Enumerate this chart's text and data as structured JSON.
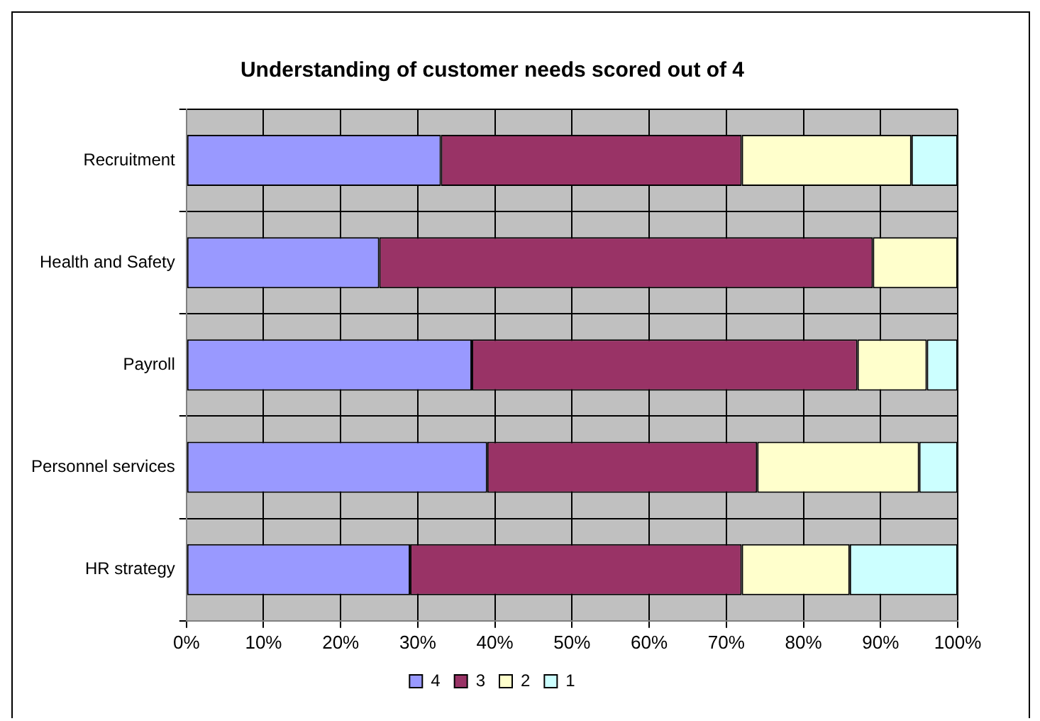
{
  "chart_data": {
    "type": "bar",
    "orientation": "horizontal",
    "stacked": true,
    "title": "Understanding of customer needs scored out of 4",
    "categories": [
      "Recruitment",
      "Health and Safety",
      "Payroll",
      "Personnel services",
      "HR strategy"
    ],
    "series": [
      {
        "name": "4",
        "color": "#9999ff",
        "values": [
          33,
          25,
          37,
          39,
          29
        ]
      },
      {
        "name": "3",
        "color": "#993366",
        "values": [
          39,
          64,
          50,
          35,
          43
        ]
      },
      {
        "name": "2",
        "color": "#ffffcc",
        "values": [
          22,
          11,
          9,
          21,
          14
        ]
      },
      {
        "name": "1",
        "color": "#ccffff",
        "values": [
          6,
          null,
          4,
          5,
          14
        ]
      }
    ],
    "xlim": [
      0,
      100
    ],
    "xticks": [
      {
        "value": 0,
        "label": "0%"
      },
      {
        "value": 10,
        "label": "10%"
      },
      {
        "value": 20,
        "label": "20%"
      },
      {
        "value": 30,
        "label": "30%"
      },
      {
        "value": 40,
        "label": "40%"
      },
      {
        "value": 50,
        "label": "50%"
      },
      {
        "value": 60,
        "label": "60%"
      },
      {
        "value": 70,
        "label": "70%"
      },
      {
        "value": 80,
        "label": "80%"
      },
      {
        "value": 90,
        "label": "90%"
      },
      {
        "value": 100,
        "label": "100%"
      }
    ],
    "grid": true,
    "legend": "bottom"
  }
}
